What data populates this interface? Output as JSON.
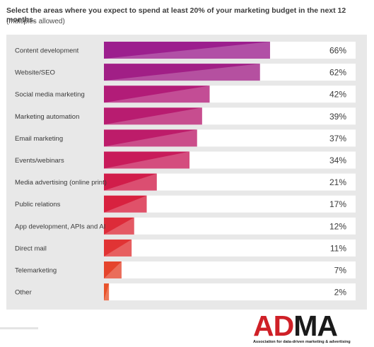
{
  "title": "Select the areas where you expect to spend at least 20% of your marketing budget in the next 12 months.",
  "subtitle": "(multiples allowed)",
  "chart_data": {
    "type": "bar",
    "orientation": "horizontal",
    "categories": [
      "Content development",
      "Website/SEO",
      "Social media marketing",
      "Marketing automation",
      "Email marketing",
      "Events/webinars",
      "Media advertising (online print)",
      "Public relations",
      "App development, APIs and AI",
      "Direct mail",
      "Telemarketing",
      "Other"
    ],
    "values": [
      66,
      62,
      42,
      39,
      37,
      34,
      21,
      17,
      12,
      11,
      7,
      2
    ],
    "value_labels": [
      "66%",
      "62%",
      "42%",
      "39%",
      "37%",
      "34%",
      "21%",
      "17%",
      "12%",
      "11%",
      "7%",
      "2%"
    ],
    "xlim": [
      0,
      100
    ],
    "grid": false,
    "legend": "none",
    "colors": [
      "#9c1f8e",
      "#a11f86",
      "#b21c78",
      "#b81c70",
      "#bd1c6a",
      "#c81b5a",
      "#d11d4a",
      "#d8213f",
      "#dd2b39",
      "#e13334",
      "#e5442c",
      "#e8522a"
    ]
  },
  "logo": {
    "part1": "AD",
    "part2": "MA",
    "tagline": "Association for data-driven marketing & advertising"
  }
}
